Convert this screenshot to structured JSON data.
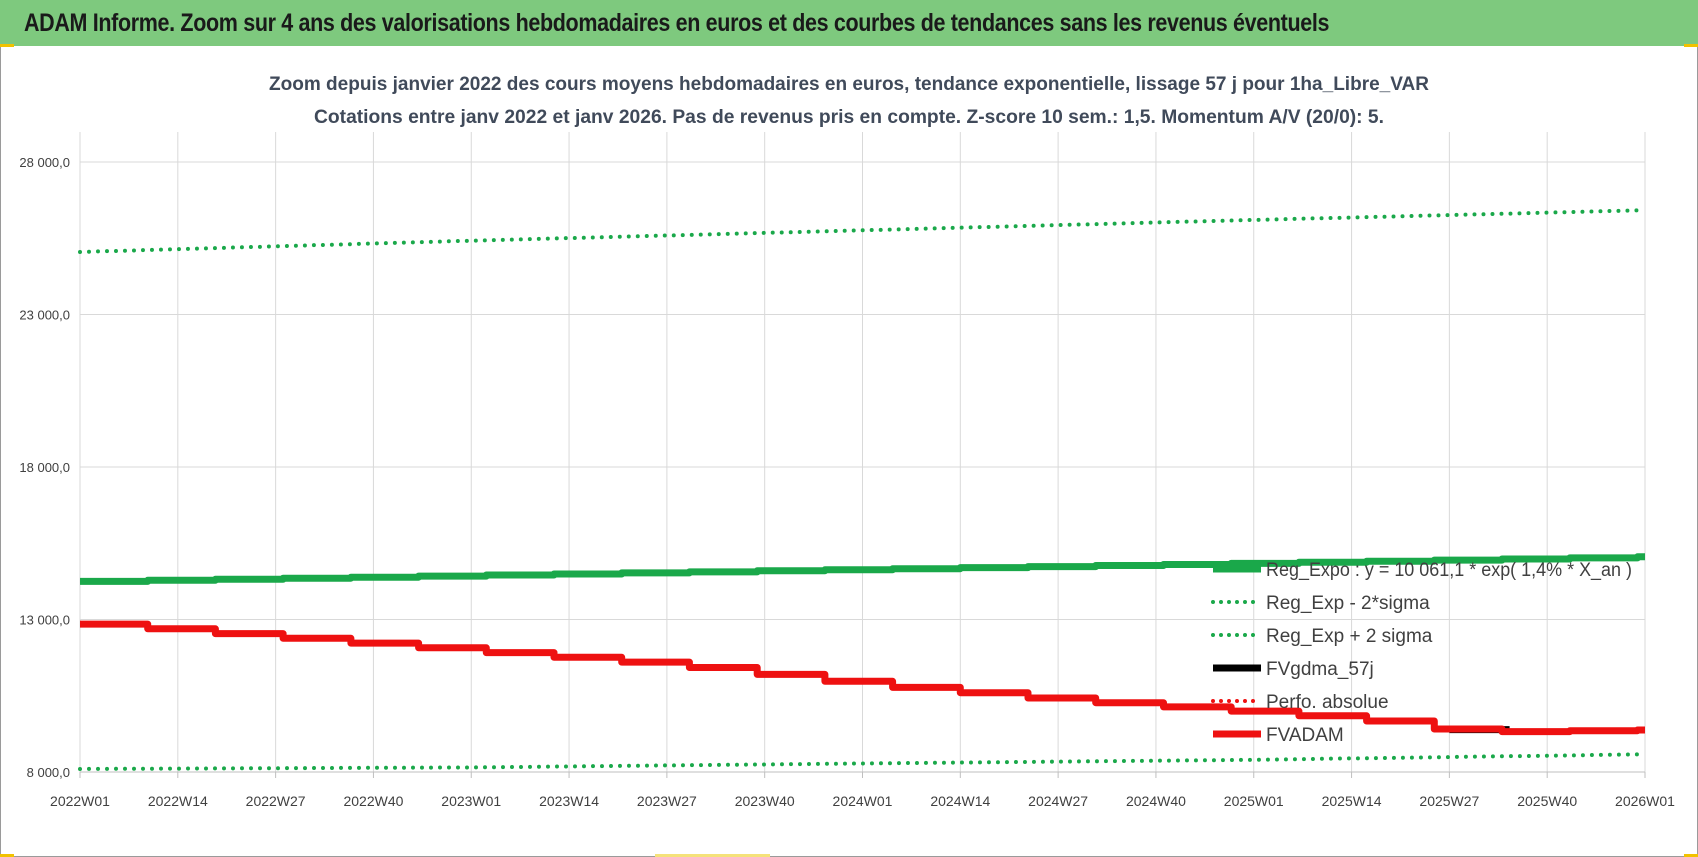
{
  "banner": {
    "title": "ADAM Informe. Zoom sur 4 ans des valorisations hebdomadaires en euros et des courbes de tendances sans les revenus éventuels"
  },
  "chart_data": {
    "type": "line",
    "title": "Zoom depuis janvier 2022 des cours moyens hebdomadaires en euros, tendance exponentielle, lissage 57 j pour 1ha_Libre_VAR",
    "subtitle": "Cotations entre janv 2022 et janv 2026. Pas de revenus pris en compte. Z-score 10 sem.: 1,5. Momentum A/V (20/0): 5.",
    "ylim": [
      8000,
      28000
    ],
    "yticks": [
      8000,
      13000,
      18000,
      23000,
      28000
    ],
    "ytick_labels": [
      "8 000,0",
      "13 000,0",
      "18 000,0",
      "23 000,0",
      "28 000,0"
    ],
    "xtick_labels": [
      "2022W01",
      "2022W14",
      "2022W27",
      "2022W40",
      "2023W01",
      "2023W14",
      "2023W27",
      "2023W40",
      "2024W01",
      "2024W14",
      "2024W27",
      "2024W40",
      "2025W01",
      "2025W14",
      "2025W27",
      "2025W40",
      "2026W01"
    ],
    "n_weeks": 209,
    "grid": true,
    "legend_position": "bottom-right",
    "series": [
      {
        "name": "Reg_Expo : y = 10 061,1 * exp( 1,4% *  X_an )",
        "color": "#1aa84a",
        "style": "solid",
        "width": "thick",
        "step": true,
        "x": [
          0,
          52,
          104,
          156,
          208
        ],
        "values": [
          14250,
          14450,
          14650,
          14850,
          15060
        ]
      },
      {
        "name": "Reg_Exp - 2*sigma",
        "color": "#1aa84a",
        "style": "dotted",
        "width": "medium",
        "x": [
          0,
          52,
          104,
          156,
          208
        ],
        "values": [
          8100,
          8150,
          8280,
          8400,
          8580
        ]
      },
      {
        "name": "Reg_Exp + 2 sigma",
        "color": "#1aa84a",
        "style": "dotted",
        "width": "medium",
        "x": [
          0,
          52,
          104,
          156,
          208
        ],
        "values": [
          25050,
          25420,
          25760,
          26100,
          26420
        ]
      },
      {
        "name": "FVgdma_57j",
        "color": "#000000",
        "style": "solid",
        "width": "thick",
        "x": [
          182,
          190
        ],
        "values": [
          9390,
          9390
        ]
      },
      {
        "name": "Perfo. absolue",
        "color": "#ee1111",
        "style": "dotted",
        "width": "medium",
        "x": [],
        "values": []
      },
      {
        "name": "FVADAM",
        "color": "#ee1111",
        "style": "solid",
        "width": "thick",
        "step": true,
        "x": [
          0,
          26,
          52,
          78,
          104,
          130,
          156,
          170,
          182,
          190,
          196,
          208
        ],
        "values": [
          12850,
          12400,
          11950,
          11500,
          10850,
          10350,
          9950,
          9700,
          9350,
          9320,
          9350,
          9380
        ]
      }
    ]
  }
}
